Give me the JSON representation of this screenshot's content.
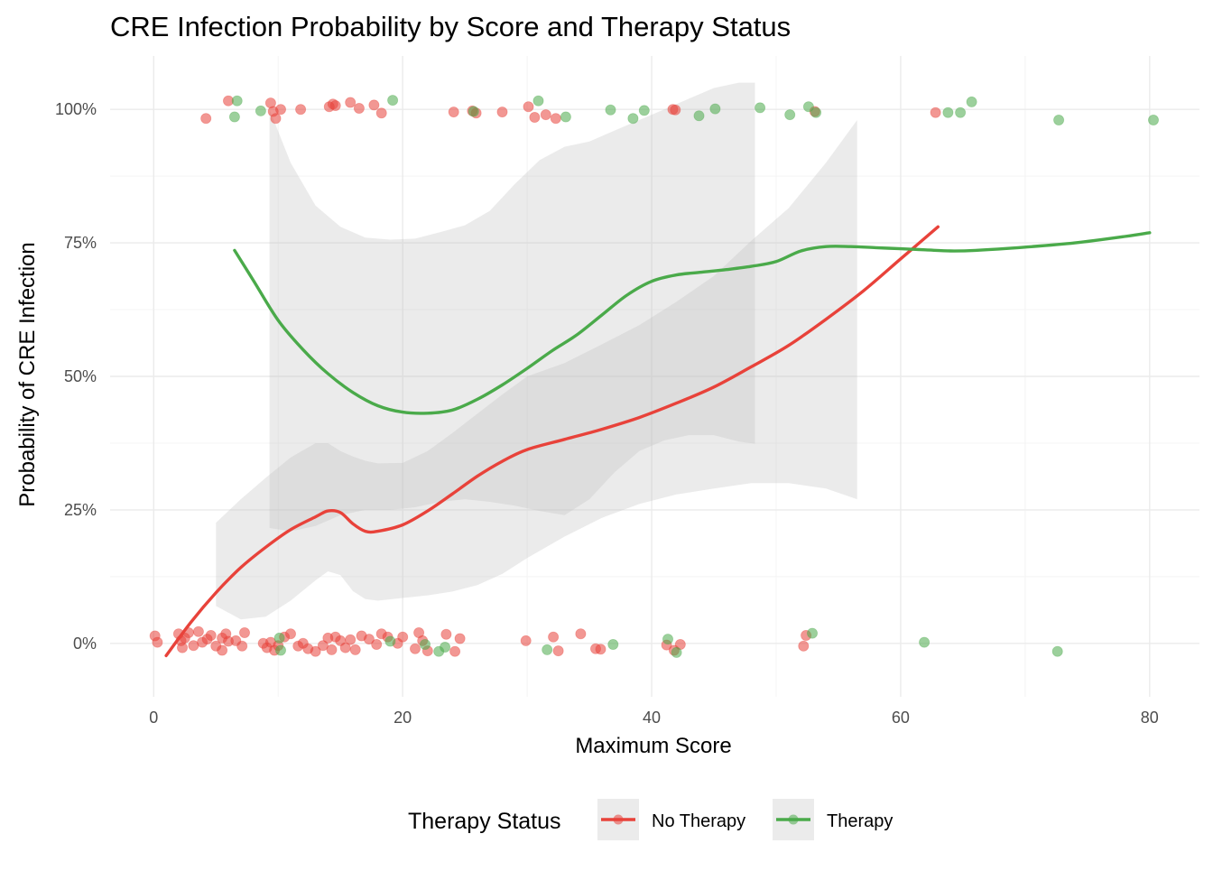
{
  "chart_data": {
    "type": "scatter",
    "title": "CRE Infection Probability by Score and Therapy Status",
    "xlabel": "Maximum Score",
    "ylabel": "Probability of CRE Infection",
    "xlim": [
      -3.5,
      84
    ],
    "ylim": [
      -0.1,
      1.1
    ],
    "x_ticks": [
      0,
      20,
      40,
      60,
      80
    ],
    "x_tick_labels": [
      "0",
      "20",
      "40",
      "60",
      "80"
    ],
    "y_ticks": [
      0,
      0.25,
      0.5,
      0.75,
      1.0
    ],
    "y_tick_labels": [
      "0%",
      "25%",
      "50%",
      "75%",
      "100%"
    ],
    "grid": true,
    "legend": {
      "title": "Therapy Status",
      "position": "bottom",
      "entries": [
        "No Therapy",
        "Therapy"
      ]
    },
    "colors": {
      "No Therapy": "#e8423a",
      "Therapy": "#4aaa4a",
      "ribbon": "#bdbdbd",
      "grid_major": "#ebebeb",
      "grid_minor": "#f4f4f4"
    },
    "series": [
      {
        "name": "No Therapy",
        "color": "#e8423a",
        "points": [
          [
            4.2,
            0.983
          ],
          [
            6.0,
            1.016
          ],
          [
            9.4,
            1.012
          ],
          [
            9.6,
            0.996
          ],
          [
            9.8,
            0.983
          ],
          [
            10.2,
            1.0
          ],
          [
            11.8,
            1.0
          ],
          [
            14.1,
            1.005
          ],
          [
            14.4,
            1.01
          ],
          [
            14.6,
            1.007
          ],
          [
            15.8,
            1.013
          ],
          [
            16.5,
            1.002
          ],
          [
            17.7,
            1.008
          ],
          [
            18.3,
            0.993
          ],
          [
            24.1,
            0.995
          ],
          [
            25.6,
            0.997
          ],
          [
            25.9,
            0.993
          ],
          [
            28.0,
            0.995
          ],
          [
            30.1,
            1.005
          ],
          [
            30.6,
            0.985
          ],
          [
            31.5,
            0.99
          ],
          [
            32.3,
            0.983
          ],
          [
            41.7,
            1.0
          ],
          [
            41.9,
            0.999
          ],
          [
            53.1,
            0.996
          ],
          [
            62.8,
            0.994
          ],
          [
            0.1,
            0.014
          ],
          [
            0.3,
            0.002
          ],
          [
            2.0,
            0.018
          ],
          [
            2.2,
            0.005
          ],
          [
            2.3,
            -0.008
          ],
          [
            2.5,
            0.01
          ],
          [
            2.8,
            0.02
          ],
          [
            3.2,
            -0.004
          ],
          [
            3.6,
            0.022
          ],
          [
            3.9,
            0.002
          ],
          [
            4.3,
            0.008
          ],
          [
            4.6,
            0.015
          ],
          [
            5.0,
            -0.005
          ],
          [
            5.5,
            0.01
          ],
          [
            5.5,
            -0.013
          ],
          [
            5.8,
            0.018
          ],
          [
            6.0,
            0.004
          ],
          [
            6.6,
            0.005
          ],
          [
            7.1,
            -0.005
          ],
          [
            7.3,
            0.02
          ],
          [
            8.8,
            0.0
          ],
          [
            9.1,
            -0.008
          ],
          [
            9.4,
            0.002
          ],
          [
            9.7,
            -0.013
          ],
          [
            10.0,
            -0.004
          ],
          [
            10.5,
            0.012
          ],
          [
            11.0,
            0.018
          ],
          [
            11.6,
            -0.005
          ],
          [
            12.0,
            0.0
          ],
          [
            12.4,
            -0.01
          ],
          [
            13.0,
            -0.015
          ],
          [
            13.6,
            -0.004
          ],
          [
            14.0,
            0.01
          ],
          [
            14.3,
            -0.012
          ],
          [
            14.6,
            0.012
          ],
          [
            15.0,
            0.005
          ],
          [
            15.4,
            -0.008
          ],
          [
            15.8,
            0.007
          ],
          [
            16.2,
            -0.012
          ],
          [
            16.7,
            0.014
          ],
          [
            17.3,
            0.008
          ],
          [
            17.9,
            -0.002
          ],
          [
            18.3,
            0.018
          ],
          [
            18.8,
            0.012
          ],
          [
            19.6,
            0.0
          ],
          [
            20.0,
            0.012
          ],
          [
            21.0,
            -0.01
          ],
          [
            21.3,
            0.02
          ],
          [
            21.6,
            0.005
          ],
          [
            22.0,
            -0.014
          ],
          [
            23.5,
            0.017
          ],
          [
            24.2,
            -0.015
          ],
          [
            24.6,
            0.009
          ],
          [
            29.9,
            0.005
          ],
          [
            32.1,
            0.012
          ],
          [
            32.5,
            -0.014
          ],
          [
            34.3,
            0.018
          ],
          [
            35.5,
            -0.01
          ],
          [
            35.9,
            -0.011
          ],
          [
            41.2,
            -0.003
          ],
          [
            41.8,
            -0.013
          ],
          [
            42.3,
            -0.002
          ],
          [
            52.2,
            -0.005
          ],
          [
            52.4,
            0.015
          ]
        ],
        "smooth": {
          "x": [
            1,
            3,
            5,
            7,
            9,
            11,
            13,
            14,
            15,
            16,
            17,
            18,
            20,
            22,
            24,
            26,
            28,
            30,
            33,
            36,
            39,
            42,
            45,
            48,
            51,
            54,
            57,
            60,
            63
          ],
          "y": [
            -0.023,
            0.04,
            0.095,
            0.142,
            0.18,
            0.213,
            0.237,
            0.248,
            0.245,
            0.224,
            0.21,
            0.21,
            0.222,
            0.248,
            0.28,
            0.313,
            0.341,
            0.363,
            0.382,
            0.401,
            0.423,
            0.45,
            0.48,
            0.518,
            0.558,
            0.607,
            0.66,
            0.72,
            0.78
          ]
        },
        "ribbon": {
          "x": [
            5,
            7,
            9,
            11,
            13,
            14,
            15,
            16,
            17,
            18,
            20,
            22,
            24,
            26,
            28,
            30,
            33,
            36,
            39,
            42,
            45,
            48,
            51,
            54,
            56.5
          ],
          "lower": [
            0.07,
            0.045,
            0.05,
            0.08,
            0.118,
            0.135,
            0.128,
            0.098,
            0.083,
            0.08,
            0.085,
            0.09,
            0.097,
            0.109,
            0.13,
            0.16,
            0.2,
            0.235,
            0.261,
            0.279,
            0.29,
            0.3,
            0.3,
            0.29,
            0.27
          ],
          "upper": [
            0.226,
            0.27,
            0.31,
            0.348,
            0.375,
            0.375,
            0.36,
            0.35,
            0.342,
            0.337,
            0.338,
            0.36,
            0.394,
            0.43,
            0.466,
            0.5,
            0.525,
            0.56,
            0.596,
            0.64,
            0.688,
            0.754,
            0.815,
            0.9,
            0.98
          ]
        }
      },
      {
        "name": "Therapy",
        "color": "#4aaa4a",
        "points": [
          [
            6.5,
            0.986
          ],
          [
            6.7,
            1.016
          ],
          [
            8.6,
            0.997
          ],
          [
            19.2,
            1.017
          ],
          [
            25.7,
            0.996
          ],
          [
            30.9,
            1.016
          ],
          [
            33.1,
            0.986
          ],
          [
            36.7,
            0.999
          ],
          [
            38.5,
            0.983
          ],
          [
            39.4,
            0.998
          ],
          [
            43.8,
            0.988
          ],
          [
            45.1,
            1.001
          ],
          [
            48.7,
            1.003
          ],
          [
            51.1,
            0.99
          ],
          [
            52.6,
            1.005
          ],
          [
            53.2,
            0.994
          ],
          [
            63.8,
            0.994
          ],
          [
            64.8,
            0.994
          ],
          [
            65.7,
            1.014
          ],
          [
            72.7,
            0.98
          ],
          [
            80.3,
            0.98
          ],
          [
            10.1,
            0.01
          ],
          [
            10.2,
            -0.013
          ],
          [
            19.0,
            0.004
          ],
          [
            21.8,
            -0.002
          ],
          [
            22.9,
            -0.015
          ],
          [
            23.4,
            -0.007
          ],
          [
            31.6,
            -0.012
          ],
          [
            36.9,
            -0.002
          ],
          [
            41.3,
            0.008
          ],
          [
            42.0,
            -0.017
          ],
          [
            52.9,
            0.019
          ],
          [
            61.9,
            0.002
          ],
          [
            72.6,
            -0.015
          ]
        ],
        "smooth": {
          "x": [
            6.5,
            8,
            10,
            12,
            14,
            16,
            18,
            20,
            22,
            24,
            26,
            28,
            30,
            32,
            34,
            36,
            38,
            40,
            42,
            44,
            46,
            48,
            50,
            52,
            54,
            56,
            58,
            60,
            62,
            64,
            66,
            70,
            74,
            78,
            80
          ],
          "y": [
            0.736,
            0.68,
            0.605,
            0.55,
            0.505,
            0.47,
            0.445,
            0.433,
            0.431,
            0.437,
            0.457,
            0.484,
            0.515,
            0.548,
            0.578,
            0.615,
            0.652,
            0.678,
            0.69,
            0.695,
            0.7,
            0.706,
            0.715,
            0.735,
            0.743,
            0.743,
            0.741,
            0.739,
            0.737,
            0.735,
            0.736,
            0.742,
            0.75,
            0.762,
            0.769
          ]
        },
        "ribbon": {
          "x": [
            9.3,
            11,
            13,
            15,
            17,
            19,
            21,
            23,
            25,
            27,
            29,
            31,
            33,
            35,
            37,
            39,
            41,
            43,
            45,
            47,
            48.3
          ],
          "lower": [
            0.216,
            0.21,
            0.22,
            0.24,
            0.25,
            0.25,
            0.255,
            0.265,
            0.27,
            0.265,
            0.258,
            0.248,
            0.24,
            0.27,
            0.32,
            0.36,
            0.38,
            0.39,
            0.39,
            0.378,
            0.374
          ],
          "upper": [
            1.0,
            0.9,
            0.82,
            0.78,
            0.76,
            0.756,
            0.758,
            0.77,
            0.783,
            0.81,
            0.86,
            0.905,
            0.93,
            0.94,
            0.96,
            0.98,
            1.0,
            1.02,
            1.04,
            1.05,
            1.05
          ]
        }
      }
    ]
  }
}
